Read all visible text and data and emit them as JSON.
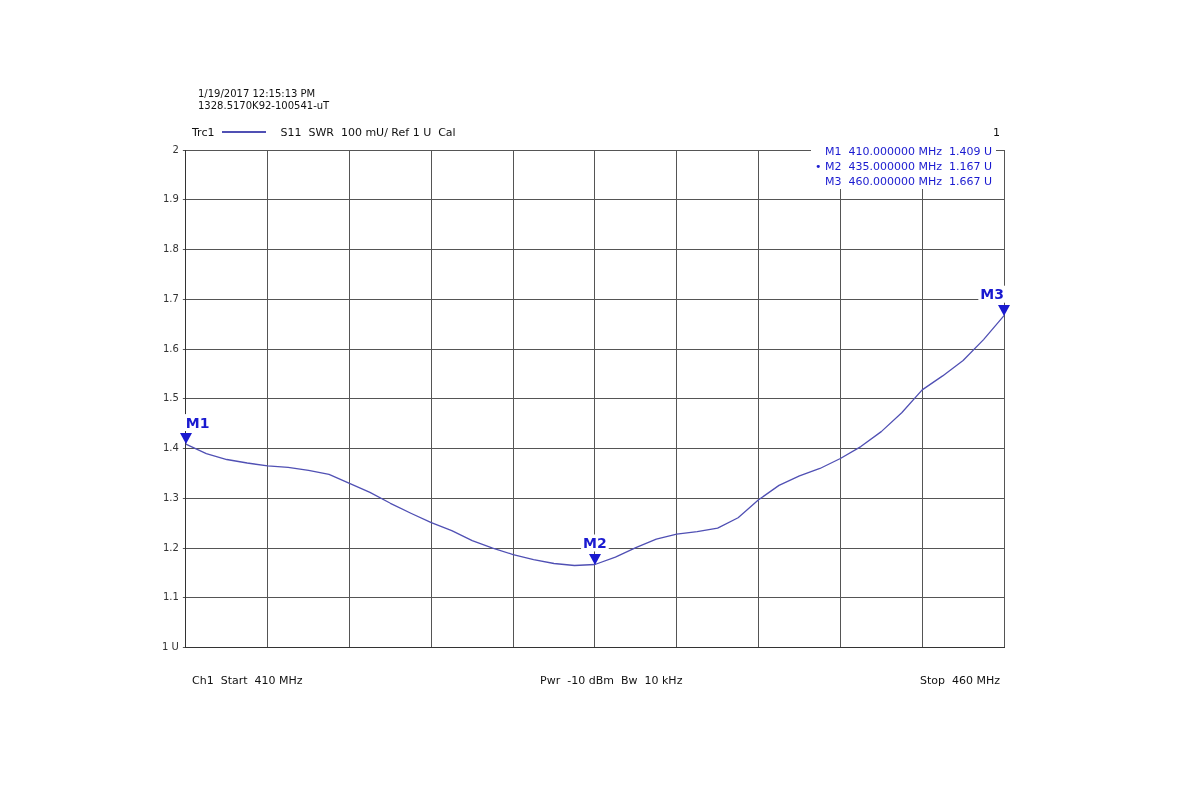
{
  "chart_data": {
    "type": "line",
    "subtitle": "S11  SWR  100 mU/ Ref 1 U  Cal",
    "categories": [
      null,
      null,
      null,
      null,
      null,
      null,
      null,
      null,
      null,
      null,
      null,
      null,
      null,
      null,
      null,
      null,
      null,
      null,
      null,
      null,
      null,
      null,
      null,
      null,
      null,
      null,
      null,
      null,
      null,
      null,
      null,
      null,
      null,
      null,
      null,
      null,
      null,
      null,
      null,
      null,
      null
    ],
    "series": [
      {
        "name": "Trc1",
        "color": "#5050b4",
        "values": [
          1.409,
          1.39,
          1.378,
          1.371,
          1.365,
          1.362,
          1.356,
          1.348,
          1.33,
          1.312,
          1.29,
          1.27,
          1.251,
          1.235,
          1.215,
          1.2,
          1.187,
          1.177,
          1.169,
          1.165,
          1.167,
          1.182,
          1.201,
          1.218,
          1.228,
          1.233,
          1.24,
          1.261,
          1.297,
          1.326,
          1.345,
          1.36,
          1.38,
          1.404,
          1.434,
          1.472,
          1.518,
          1.546,
          1.577,
          1.619,
          1.667
        ],
        "value_labels": [
          "M1",
          null,
          null,
          null,
          null,
          null,
          null,
          null,
          null,
          null,
          null,
          null,
          null,
          null,
          null,
          null,
          null,
          null,
          null,
          null,
          "M2",
          null,
          null,
          null,
          null,
          null,
          null,
          null,
          null,
          null,
          null,
          null,
          null,
          null,
          null,
          null,
          null,
          null,
          null,
          null,
          "M3"
        ]
      }
    ],
    "ylim": [
      1,
      2
    ],
    "yticks": [
      {
        "value": 1,
        "label": "1 U"
      },
      1.1,
      1.2,
      1.3,
      1.4,
      1.5,
      1.6,
      1.7,
      1.8,
      1.9,
      2
    ],
    "grid": true,
    "legend": "top left",
    "marker": "none",
    "annotations": [
      "1/19/2017 12:15:13 PM",
      "1328.5170K92-100541-uT",
      "1",
      "M1  410.000000 MHz  1.409 U",
      "• M2  435.000000 MHz  1.167 U",
      "M3  460.000000 MHz  1.667 U",
      "Ch1  Start  410 MHz",
      "Pwr  -10 dBm  Bw  10 kHz",
      "Stop  460 MHz"
    ]
  }
}
